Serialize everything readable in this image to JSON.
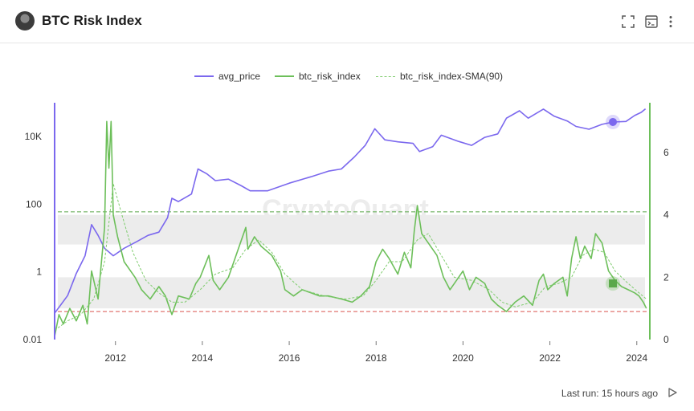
{
  "header": {
    "title": "BTC Risk Index",
    "icons": [
      "fullscreen-icon",
      "terminal-icon",
      "more-vertical-icon"
    ]
  },
  "footer": {
    "last_run": "Last run: 15 hours ago"
  },
  "colors": {
    "price": "#7b68ee",
    "risk": "#6dbf5a",
    "sma": "#7fcc6e",
    "upper_line": "#5aa84a",
    "lower_line": "#d9534f",
    "band": "#ececec"
  },
  "chart_data": {
    "type": "line",
    "title": "",
    "legend_position": "top-center",
    "grid": false,
    "x_ticks": [
      "2012",
      "2014",
      "2016",
      "2018",
      "2020",
      "2022",
      "2024"
    ],
    "x_range": [
      2010.6,
      2024.3
    ],
    "left_axis": {
      "scale": "log",
      "ticks": [
        "0.01",
        "1",
        "100",
        "10K"
      ],
      "range": [
        0.01,
        100000
      ]
    },
    "right_axis": {
      "scale": "linear",
      "ticks": [
        "0",
        "2",
        "4",
        "6"
      ],
      "range": [
        0,
        7.6
      ]
    },
    "thresholds": {
      "upper": 4.1,
      "lower": 0.9
    },
    "bands": [
      {
        "from": 3.05,
        "to": 4.0
      },
      {
        "from": 1.0,
        "to": 2.0
      }
    ],
    "series": [
      {
        "name": "avg_price",
        "axis": "left",
        "points": [
          [
            2010.6,
            0.06
          ],
          [
            2010.9,
            0.2
          ],
          [
            2011.1,
            0.9
          ],
          [
            2011.3,
            3
          ],
          [
            2011.45,
            25
          ],
          [
            2011.6,
            12
          ],
          [
            2011.75,
            5
          ],
          [
            2011.95,
            3
          ],
          [
            2012.2,
            5
          ],
          [
            2012.5,
            8
          ],
          [
            2012.75,
            12
          ],
          [
            2013.0,
            15
          ],
          [
            2013.2,
            40
          ],
          [
            2013.3,
            150
          ],
          [
            2013.45,
            120
          ],
          [
            2013.75,
            200
          ],
          [
            2013.9,
            1100
          ],
          [
            2014.1,
            800
          ],
          [
            2014.3,
            500
          ],
          [
            2014.6,
            550
          ],
          [
            2014.9,
            350
          ],
          [
            2015.1,
            250
          ],
          [
            2015.5,
            250
          ],
          [
            2016.0,
            420
          ],
          [
            2016.5,
            650
          ],
          [
            2016.9,
            950
          ],
          [
            2017.2,
            1100
          ],
          [
            2017.5,
            2500
          ],
          [
            2017.75,
            5500
          ],
          [
            2017.97,
            17000
          ],
          [
            2018.2,
            8000
          ],
          [
            2018.5,
            7000
          ],
          [
            2018.85,
            6300
          ],
          [
            2019.0,
            3600
          ],
          [
            2019.3,
            5000
          ],
          [
            2019.5,
            11000
          ],
          [
            2019.9,
            7200
          ],
          [
            2020.2,
            5500
          ],
          [
            2020.5,
            9500
          ],
          [
            2020.8,
            12000
          ],
          [
            2021.0,
            35000
          ],
          [
            2021.3,
            58000
          ],
          [
            2021.5,
            35000
          ],
          [
            2021.85,
            65000
          ],
          [
            2022.1,
            40000
          ],
          [
            2022.4,
            29000
          ],
          [
            2022.6,
            20000
          ],
          [
            2022.9,
            16500
          ],
          [
            2023.2,
            23000
          ],
          [
            2023.45,
            27000
          ],
          [
            2023.75,
            28000
          ],
          [
            2023.95,
            42000
          ],
          [
            2024.1,
            52000
          ],
          [
            2024.2,
            66000
          ]
        ]
      },
      {
        "name": "btc_risk_index",
        "axis": "right",
        "points": [
          [
            2010.6,
            0.1
          ],
          [
            2010.7,
            0.8
          ],
          [
            2010.8,
            0.5
          ],
          [
            2010.95,
            1.0
          ],
          [
            2011.1,
            0.6
          ],
          [
            2011.25,
            1.1
          ],
          [
            2011.35,
            0.5
          ],
          [
            2011.45,
            2.2
          ],
          [
            2011.6,
            1.3
          ],
          [
            2011.75,
            3.6
          ],
          [
            2011.8,
            7.0
          ],
          [
            2011.85,
            5.5
          ],
          [
            2011.9,
            7.0
          ],
          [
            2011.95,
            4.0
          ],
          [
            2012.05,
            3.3
          ],
          [
            2012.2,
            2.5
          ],
          [
            2012.45,
            2.0
          ],
          [
            2012.6,
            1.6
          ],
          [
            2012.8,
            1.3
          ],
          [
            2013.0,
            1.7
          ],
          [
            2013.15,
            1.4
          ],
          [
            2013.3,
            0.8
          ],
          [
            2013.45,
            1.4
          ],
          [
            2013.7,
            1.3
          ],
          [
            2013.85,
            1.8
          ],
          [
            2013.95,
            2.0
          ],
          [
            2014.15,
            2.7
          ],
          [
            2014.25,
            1.9
          ],
          [
            2014.4,
            1.6
          ],
          [
            2014.6,
            2.0
          ],
          [
            2014.75,
            2.6
          ],
          [
            2014.9,
            3.2
          ],
          [
            2015.0,
            3.6
          ],
          [
            2015.05,
            2.9
          ],
          [
            2015.2,
            3.3
          ],
          [
            2015.35,
            3.0
          ],
          [
            2015.6,
            2.7
          ],
          [
            2015.8,
            2.2
          ],
          [
            2015.9,
            1.6
          ],
          [
            2016.1,
            1.4
          ],
          [
            2016.3,
            1.6
          ],
          [
            2016.5,
            1.5
          ],
          [
            2016.7,
            1.4
          ],
          [
            2016.9,
            1.4
          ],
          [
            2017.2,
            1.3
          ],
          [
            2017.45,
            1.2
          ],
          [
            2017.65,
            1.4
          ],
          [
            2017.85,
            1.7
          ],
          [
            2018.0,
            2.5
          ],
          [
            2018.15,
            2.9
          ],
          [
            2018.3,
            2.6
          ],
          [
            2018.5,
            2.1
          ],
          [
            2018.65,
            2.8
          ],
          [
            2018.8,
            2.3
          ],
          [
            2018.88,
            3.5
          ],
          [
            2018.95,
            4.3
          ],
          [
            2019.05,
            3.4
          ],
          [
            2019.2,
            3.1
          ],
          [
            2019.4,
            2.7
          ],
          [
            2019.55,
            2.0
          ],
          [
            2019.7,
            1.6
          ],
          [
            2019.85,
            1.9
          ],
          [
            2020.0,
            2.2
          ],
          [
            2020.15,
            1.6
          ],
          [
            2020.3,
            2.0
          ],
          [
            2020.5,
            1.8
          ],
          [
            2020.65,
            1.3
          ],
          [
            2020.8,
            1.1
          ],
          [
            2021.0,
            0.9
          ],
          [
            2021.2,
            1.2
          ],
          [
            2021.4,
            1.4
          ],
          [
            2021.6,
            1.1
          ],
          [
            2021.75,
            1.9
          ],
          [
            2021.85,
            2.1
          ],
          [
            2021.95,
            1.6
          ],
          [
            2022.1,
            1.8
          ],
          [
            2022.3,
            2.0
          ],
          [
            2022.4,
            1.4
          ],
          [
            2022.5,
            2.6
          ],
          [
            2022.6,
            3.3
          ],
          [
            2022.7,
            2.6
          ],
          [
            2022.8,
            3.0
          ],
          [
            2022.95,
            2.6
          ],
          [
            2023.05,
            3.4
          ],
          [
            2023.2,
            3.1
          ],
          [
            2023.35,
            2.2
          ],
          [
            2023.5,
            1.9
          ],
          [
            2023.65,
            1.7
          ],
          [
            2023.8,
            1.6
          ],
          [
            2023.95,
            1.5
          ],
          [
            2024.05,
            1.4
          ],
          [
            2024.15,
            1.2
          ],
          [
            2024.22,
            1.0
          ]
        ]
      },
      {
        "name": "btc_risk_index-SMA(90)",
        "axis": "right",
        "dashed": true,
        "points": [
          [
            2010.6,
            0.3
          ],
          [
            2010.9,
            0.6
          ],
          [
            2011.2,
            0.8
          ],
          [
            2011.5,
            1.3
          ],
          [
            2011.75,
            2.5
          ],
          [
            2011.95,
            5.0
          ],
          [
            2012.15,
            4.0
          ],
          [
            2012.4,
            2.8
          ],
          [
            2012.7,
            1.9
          ],
          [
            2013.0,
            1.5
          ],
          [
            2013.3,
            1.2
          ],
          [
            2013.6,
            1.2
          ],
          [
            2013.95,
            1.6
          ],
          [
            2014.3,
            2.1
          ],
          [
            2014.7,
            2.3
          ],
          [
            2015.0,
            2.9
          ],
          [
            2015.3,
            3.2
          ],
          [
            2015.6,
            2.8
          ],
          [
            2015.9,
            2.1
          ],
          [
            2016.3,
            1.6
          ],
          [
            2016.8,
            1.4
          ],
          [
            2017.3,
            1.3
          ],
          [
            2017.7,
            1.4
          ],
          [
            2018.0,
            1.9
          ],
          [
            2018.3,
            2.5
          ],
          [
            2018.6,
            2.5
          ],
          [
            2018.95,
            3.2
          ],
          [
            2019.2,
            3.4
          ],
          [
            2019.5,
            2.7
          ],
          [
            2019.8,
            2.0
          ],
          [
            2020.2,
            1.9
          ],
          [
            2020.6,
            1.6
          ],
          [
            2020.9,
            1.2
          ],
          [
            2021.2,
            1.05
          ],
          [
            2021.6,
            1.2
          ],
          [
            2021.9,
            1.7
          ],
          [
            2022.2,
            1.8
          ],
          [
            2022.5,
            2.0
          ],
          [
            2022.75,
            2.7
          ],
          [
            2023.0,
            2.9
          ],
          [
            2023.25,
            2.8
          ],
          [
            2023.5,
            2.2
          ],
          [
            2023.8,
            1.8
          ],
          [
            2024.05,
            1.5
          ],
          [
            2024.22,
            1.3
          ]
        ]
      }
    ],
    "highlight_points": [
      {
        "series": "avg_price",
        "x": 2023.45,
        "y": 27000
      },
      {
        "series": "btc_risk_index",
        "x": 2023.45,
        "y": 1.8
      }
    ]
  }
}
